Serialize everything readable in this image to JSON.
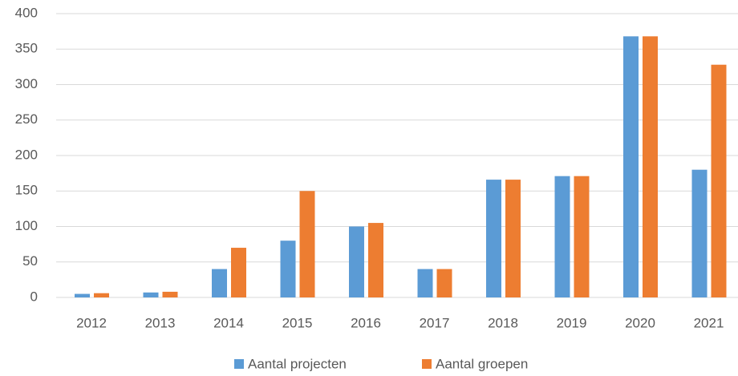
{
  "chart_data": {
    "type": "bar",
    "categories": [
      "2012",
      "2013",
      "2014",
      "2015",
      "2016",
      "2017",
      "2018",
      "2019",
      "2020",
      "2021"
    ],
    "series": [
      {
        "name": "Aantal projecten",
        "color": "#5b9bd5",
        "values": [
          5,
          7,
          40,
          80,
          100,
          40,
          166,
          171,
          368,
          180
        ]
      },
      {
        "name": "Aantal groepen",
        "color": "#ed7d31",
        "values": [
          6,
          8,
          70,
          150,
          105,
          40,
          166,
          171,
          368,
          328
        ]
      }
    ],
    "ylim": [
      0,
      400
    ],
    "yticks": [
      0,
      50,
      100,
      150,
      200,
      250,
      300,
      350,
      400
    ],
    "grid": true,
    "legend": "bottom"
  }
}
